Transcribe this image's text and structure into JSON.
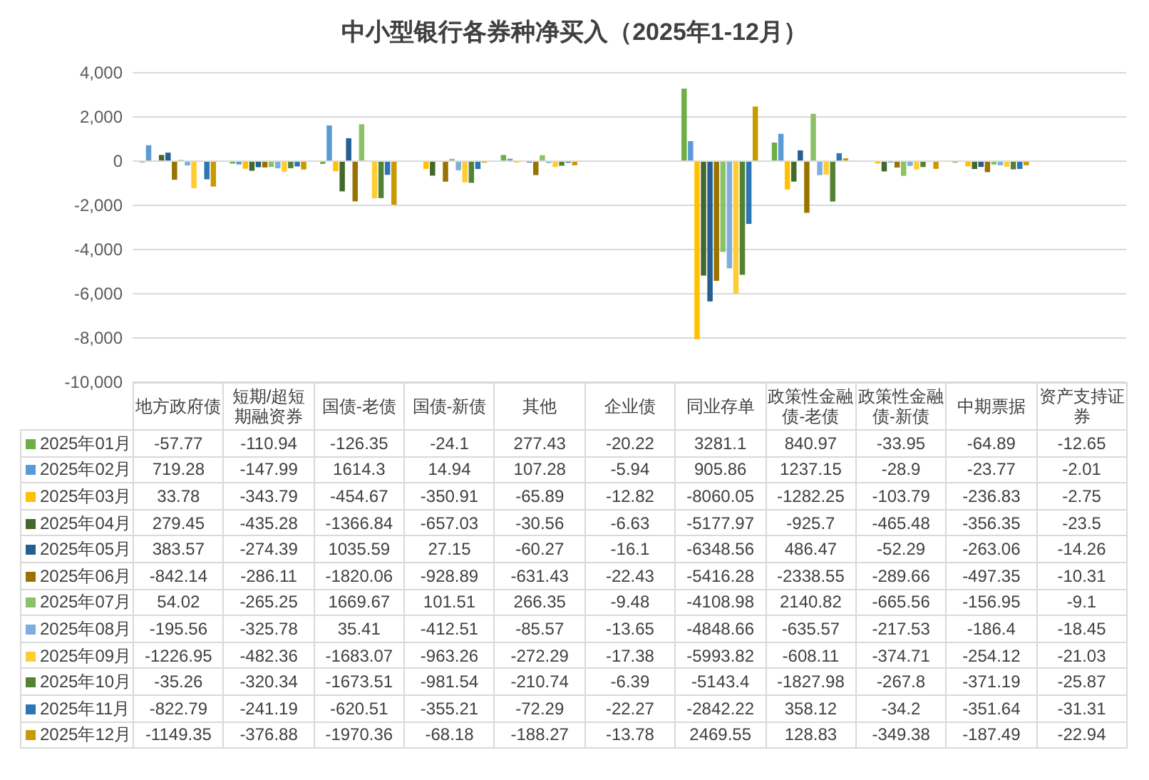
{
  "chart_data": {
    "type": "bar",
    "title": "中小型银行各券种净买入（2025年1-12月）",
    "categories": [
      "地方政府债",
      "短期/超短期融资券",
      "国债-老债",
      "国债-新债",
      "其他",
      "企业债",
      "同业存单",
      "政策性金融债-老债",
      "政策性金融债-新债",
      "中期票据",
      "资产支持证券"
    ],
    "series": [
      {
        "name": "2025年01月",
        "color": "#70ad47",
        "values": [
          -57.77,
          -110.94,
          -126.35,
          -24.1,
          277.43,
          -20.22,
          3281.1,
          840.97,
          -33.95,
          -64.89,
          -12.65
        ]
      },
      {
        "name": "2025年02月",
        "color": "#5b9bd5",
        "values": [
          719.28,
          -147.99,
          1614.3,
          14.94,
          107.28,
          -5.94,
          905.86,
          1237.15,
          -28.9,
          -23.77,
          -2.01
        ]
      },
      {
        "name": "2025年03月",
        "color": "#ffc000",
        "values": [
          33.78,
          -343.79,
          -454.67,
          -350.91,
          -65.89,
          -12.82,
          -8060.05,
          -1282.25,
          -103.79,
          -236.83,
          -2.75
        ]
      },
      {
        "name": "2025年04月",
        "color": "#43682b",
        "values": [
          279.45,
          -435.28,
          -1366.84,
          -657.03,
          -30.56,
          -6.63,
          -5177.97,
          -925.7,
          -465.48,
          -356.35,
          -23.5
        ]
      },
      {
        "name": "2025年05月",
        "color": "#255e91",
        "values": [
          383.57,
          -274.39,
          1035.59,
          27.15,
          -60.27,
          -16.1,
          -6348.56,
          486.47,
          -52.29,
          -263.06,
          -14.26
        ]
      },
      {
        "name": "2025年06月",
        "color": "#997300",
        "values": [
          -842.14,
          -286.11,
          -1820.06,
          -928.89,
          -631.43,
          -22.43,
          -5416.28,
          -2338.55,
          -289.66,
          -497.35,
          -10.31
        ]
      },
      {
        "name": "2025年07月",
        "color": "#8cc168",
        "values": [
          54.02,
          -265.25,
          1669.67,
          101.51,
          266.35,
          -9.48,
          -4108.98,
          2140.82,
          -665.56,
          -156.95,
          -9.1
        ]
      },
      {
        "name": "2025年08月",
        "color": "#7cafdd",
        "values": [
          -195.56,
          -325.78,
          35.41,
          -412.51,
          -85.57,
          -13.65,
          -4848.66,
          -635.57,
          -217.53,
          -186.4,
          -18.45
        ]
      },
      {
        "name": "2025年09月",
        "color": "#ffcd33",
        "values": [
          -1226.95,
          -482.36,
          -1683.07,
          -963.26,
          -272.29,
          -17.38,
          -5993.82,
          -608.11,
          -374.71,
          -254.12,
          -21.03
        ]
      },
      {
        "name": "2025年10月",
        "color": "#548235",
        "values": [
          -35.26,
          -320.34,
          -1673.51,
          -981.54,
          -210.74,
          -6.39,
          -5143.4,
          -1827.98,
          -267.8,
          -371.19,
          -25.87
        ]
      },
      {
        "name": "2025年11月",
        "color": "#2e75b6",
        "values": [
          -822.79,
          -241.19,
          -620.51,
          -355.21,
          -72.29,
          -22.27,
          -2842.22,
          358.12,
          -34.2,
          -351.64,
          -31.31
        ]
      },
      {
        "name": "2025年12月",
        "color": "#c99a00",
        "values": [
          -1149.35,
          -376.88,
          -1970.36,
          -68.18,
          -188.27,
          -13.78,
          2469.55,
          128.83,
          -349.38,
          -187.49,
          -22.94
        ]
      }
    ],
    "ylim": [
      -10000,
      4000
    ],
    "yticks": [
      {
        "value": -10000,
        "label": "-10,000"
      },
      {
        "value": -8000,
        "label": "-8,000"
      },
      {
        "value": -6000,
        "label": "-6,000"
      },
      {
        "value": -4000,
        "label": "-4,000"
      },
      {
        "value": -2000,
        "label": "-2,000"
      },
      {
        "value": 0,
        "label": "0"
      },
      {
        "value": 2000,
        "label": "2,000"
      },
      {
        "value": 4000,
        "label": "4,000"
      }
    ],
    "grid": "y",
    "legend": "bottom",
    "data_labels": true
  }
}
